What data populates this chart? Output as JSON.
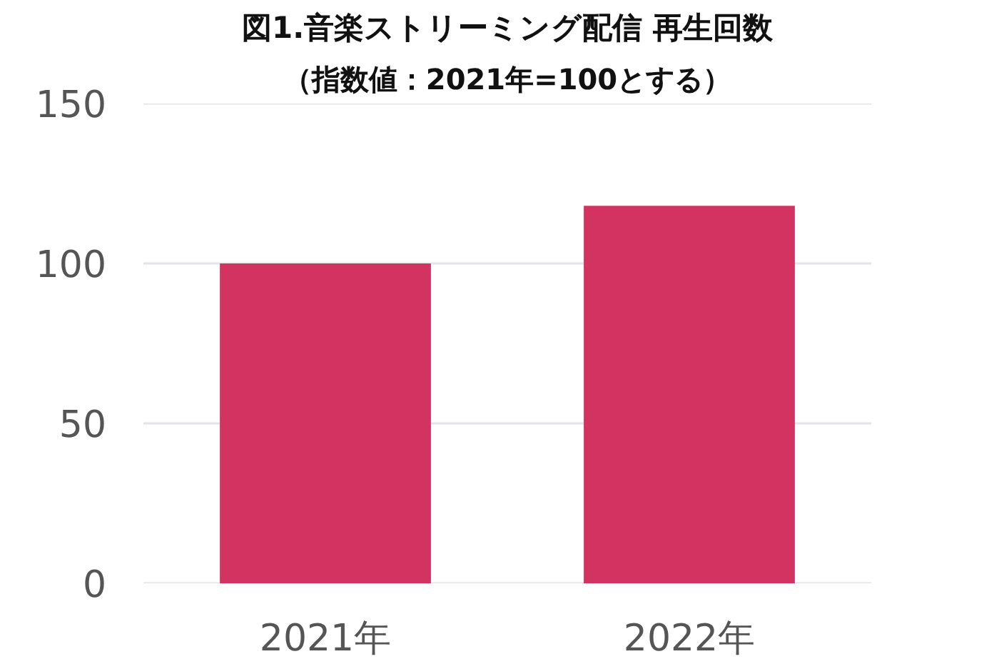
{
  "chart_data": {
    "type": "bar",
    "title": "図1.音楽ストリーミング配信 再生回数",
    "subtitle": "（指数値：2021年=100とする）",
    "categories": [
      "2021年",
      "2022年"
    ],
    "values": [
      100,
      118
    ],
    "color": "#d33360",
    "ylim": [
      0,
      150
    ],
    "yticks": [
      0,
      50,
      100,
      150
    ],
    "grid": "y"
  }
}
